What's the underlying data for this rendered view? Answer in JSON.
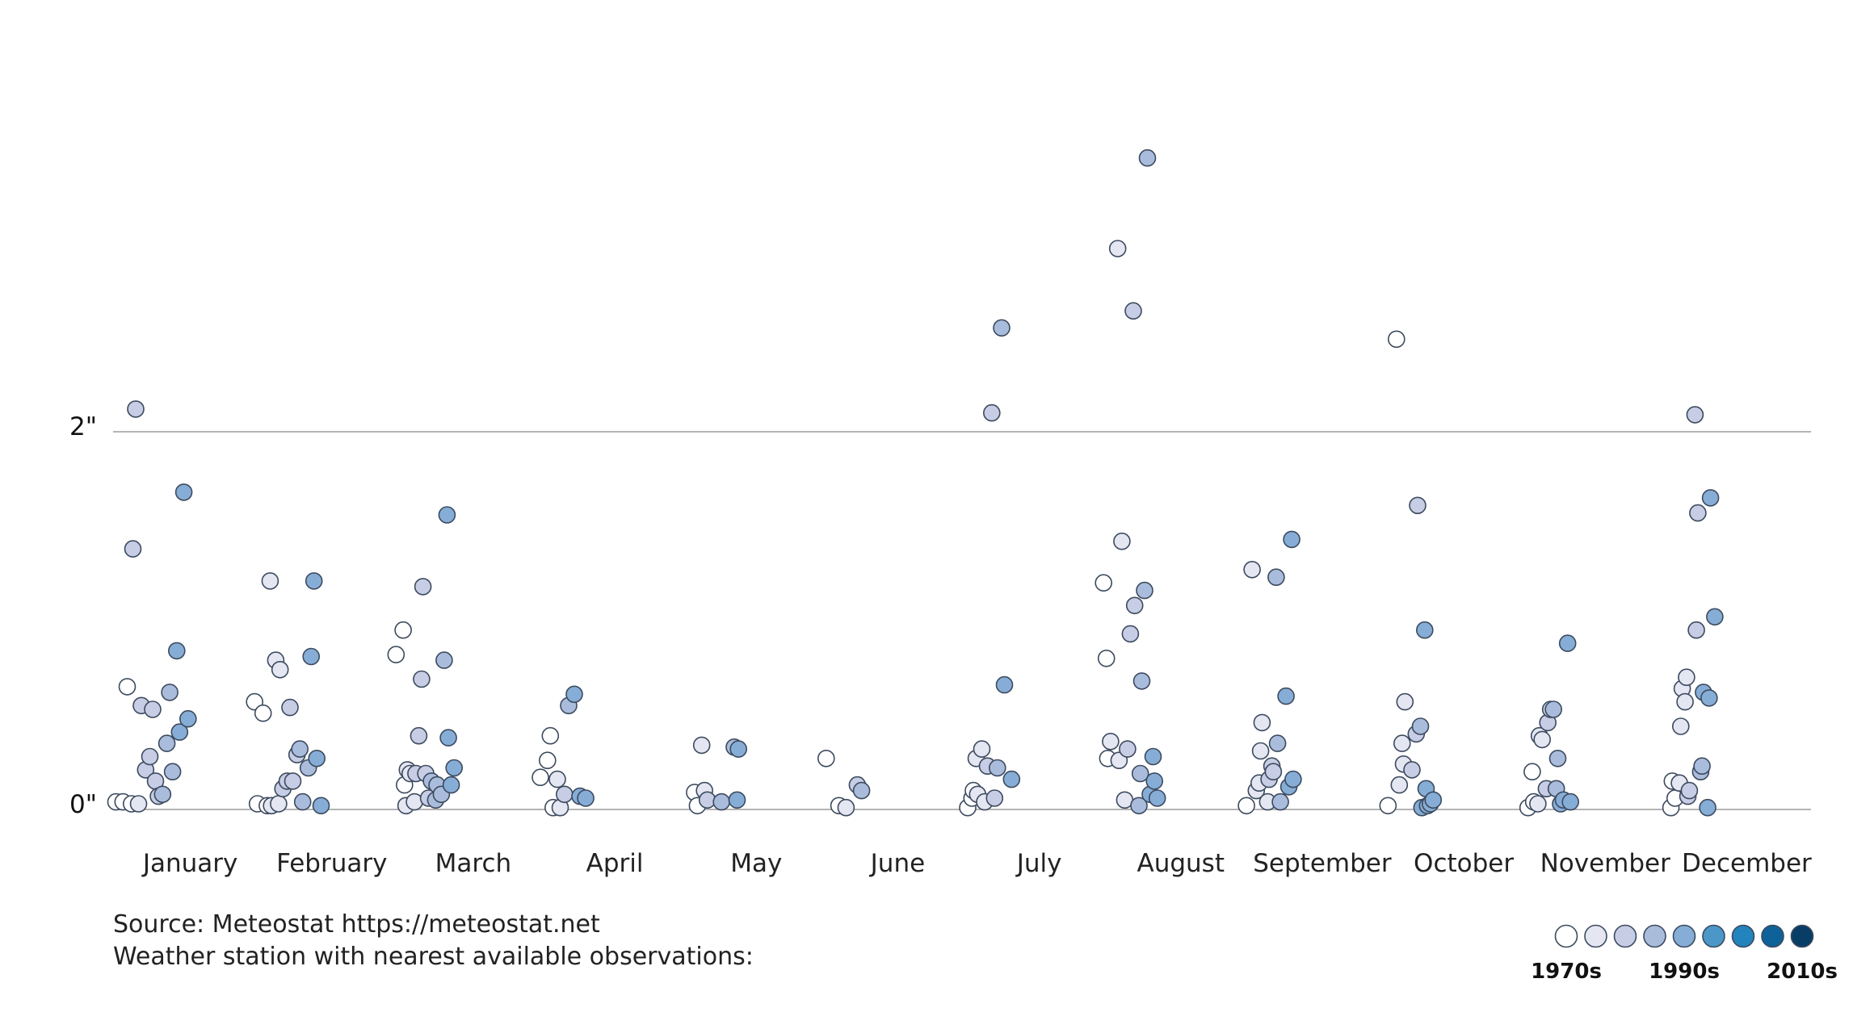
{
  "chart_data": {
    "type": "scatter",
    "title": "",
    "xlabel": "",
    "ylabel": "",
    "ylim": [
      0,
      3.3
    ],
    "y_ticks": [
      {
        "value": 0,
        "label": "0\""
      },
      {
        "value": 2,
        "label": "2\""
      }
    ],
    "categories": [
      "January",
      "February",
      "March",
      "April",
      "May",
      "June",
      "July",
      "August",
      "September",
      "October",
      "November",
      "December"
    ],
    "legend": {
      "position": "bottom-right",
      "shades": [
        "#ffffff",
        "#e4e6f2",
        "#c7cde4",
        "#a9bcdc",
        "#86add6",
        "#4b98c8",
        "#2383bd",
        "#0e629a",
        "#083d66"
      ],
      "labels": [
        "1970s",
        "1990s",
        "2010s"
      ]
    },
    "series": [
      {
        "name": "January",
        "points": [
          [
            -0.48,
            0.04,
            0
          ],
          [
            -0.43,
            0.04,
            0
          ],
          [
            -0.4,
            0.65,
            0
          ],
          [
            -0.37,
            0.03,
            0
          ],
          [
            -0.32,
            0.03,
            1
          ],
          [
            -0.36,
            1.38,
            2
          ],
          [
            -0.34,
            2.12,
            2
          ],
          [
            -0.3,
            0.55,
            2
          ],
          [
            -0.27,
            0.21,
            2
          ],
          [
            -0.24,
            0.28,
            2
          ],
          [
            -0.22,
            0.53,
            2
          ],
          [
            -0.2,
            0.15,
            2
          ],
          [
            -0.18,
            0.07,
            2
          ],
          [
            -0.15,
            0.08,
            3
          ],
          [
            -0.12,
            0.35,
            3
          ],
          [
            -0.1,
            0.62,
            3
          ],
          [
            -0.08,
            0.2,
            3
          ],
          [
            -0.05,
            0.84,
            4
          ],
          [
            -0.03,
            0.41,
            4
          ],
          [
            0.0,
            1.68,
            4
          ],
          [
            0.03,
            0.48,
            4
          ]
        ]
      },
      {
        "name": "February",
        "points": [
          [
            -0.5,
            0.57,
            0
          ],
          [
            -0.48,
            0.03,
            0
          ],
          [
            -0.44,
            0.51,
            0
          ],
          [
            -0.41,
            0.02,
            0
          ],
          [
            -0.38,
            0.02,
            1
          ],
          [
            -0.39,
            1.21,
            1
          ],
          [
            -0.35,
            0.79,
            1
          ],
          [
            -0.32,
            0.74,
            1
          ],
          [
            -0.33,
            0.03,
            1
          ],
          [
            -0.3,
            0.11,
            2
          ],
          [
            -0.27,
            0.15,
            2
          ],
          [
            -0.25,
            0.54,
            2
          ],
          [
            -0.23,
            0.15,
            2
          ],
          [
            -0.2,
            0.29,
            2
          ],
          [
            -0.18,
            0.32,
            3
          ],
          [
            -0.16,
            0.04,
            3
          ],
          [
            -0.12,
            0.22,
            3
          ],
          [
            -0.1,
            0.81,
            4
          ],
          [
            -0.08,
            1.21,
            4
          ],
          [
            -0.06,
            0.27,
            4
          ],
          [
            -0.03,
            0.02,
            4
          ]
        ]
      },
      {
        "name": "March",
        "points": [
          [
            -0.5,
            0.82,
            0
          ],
          [
            -0.45,
            0.95,
            0
          ],
          [
            -0.44,
            0.13,
            0
          ],
          [
            -0.43,
            0.02,
            1
          ],
          [
            -0.42,
            0.21,
            1
          ],
          [
            -0.4,
            0.19,
            1
          ],
          [
            -0.37,
            0.04,
            1
          ],
          [
            -0.36,
            0.19,
            2
          ],
          [
            -0.34,
            0.39,
            2
          ],
          [
            -0.32,
            0.69,
            2
          ],
          [
            -0.31,
            1.18,
            2
          ],
          [
            -0.29,
            0.19,
            2
          ],
          [
            -0.27,
            0.06,
            2
          ],
          [
            -0.25,
            0.15,
            3
          ],
          [
            -0.22,
            0.05,
            3
          ],
          [
            -0.21,
            0.13,
            3
          ],
          [
            -0.18,
            0.08,
            3
          ],
          [
            -0.16,
            0.79,
            3
          ],
          [
            -0.14,
            1.56,
            4
          ],
          [
            -0.13,
            0.38,
            4
          ],
          [
            -0.11,
            0.13,
            4
          ],
          [
            -0.09,
            0.22,
            4
          ]
        ]
      },
      {
        "name": "April",
        "points": [
          [
            -0.48,
            0.17,
            0
          ],
          [
            -0.41,
            0.39,
            0
          ],
          [
            -0.43,
            0.26,
            0
          ],
          [
            -0.39,
            0.01,
            0
          ],
          [
            -0.36,
            0.16,
            1
          ],
          [
            -0.34,
            0.01,
            1
          ],
          [
            -0.31,
            0.08,
            2
          ],
          [
            -0.28,
            0.55,
            3
          ],
          [
            -0.24,
            0.61,
            4
          ],
          [
            -0.2,
            0.07,
            4
          ],
          [
            -0.16,
            0.06,
            4
          ]
        ]
      },
      {
        "name": "May",
        "points": [
          [
            -0.39,
            0.09,
            0
          ],
          [
            -0.37,
            0.02,
            0
          ],
          [
            -0.34,
            0.34,
            1
          ],
          [
            -0.32,
            0.1,
            1
          ],
          [
            -0.3,
            0.05,
            2
          ],
          [
            -0.2,
            0.04,
            3
          ],
          [
            -0.11,
            0.33,
            3
          ],
          [
            -0.08,
            0.32,
            4
          ],
          [
            -0.09,
            0.05,
            4
          ]
        ]
      },
      {
        "name": "June",
        "points": [
          [
            -0.46,
            0.27,
            0
          ],
          [
            -0.37,
            0.02,
            0
          ],
          [
            -0.32,
            0.01,
            1
          ],
          [
            -0.24,
            0.13,
            2
          ],
          [
            -0.21,
            0.1,
            3
          ]
        ]
      },
      {
        "name": "July",
        "points": [
          [
            -0.46,
            0.01,
            0
          ],
          [
            -0.43,
            0.06,
            0
          ],
          [
            -0.42,
            0.1,
            0
          ],
          [
            -0.4,
            0.27,
            1
          ],
          [
            -0.39,
            0.08,
            1
          ],
          [
            -0.36,
            0.32,
            1
          ],
          [
            -0.34,
            0.04,
            1
          ],
          [
            -0.32,
            0.23,
            2
          ],
          [
            -0.29,
            2.1,
            2
          ],
          [
            -0.27,
            0.06,
            2
          ],
          [
            -0.25,
            0.22,
            3
          ],
          [
            -0.22,
            2.55,
            3
          ],
          [
            -0.2,
            0.66,
            4
          ],
          [
            -0.15,
            0.16,
            4
          ]
        ]
      },
      {
        "name": "August",
        "points": [
          [
            -0.5,
            1.2,
            0
          ],
          [
            -0.48,
            0.8,
            0
          ],
          [
            -0.47,
            0.27,
            0
          ],
          [
            -0.45,
            0.36,
            1
          ],
          [
            -0.4,
            2.97,
            1
          ],
          [
            -0.39,
            0.26,
            1
          ],
          [
            -0.37,
            1.42,
            1
          ],
          [
            -0.35,
            0.05,
            1
          ],
          [
            -0.33,
            0.32,
            2
          ],
          [
            -0.31,
            0.93,
            2
          ],
          [
            -0.29,
            2.64,
            2
          ],
          [
            -0.28,
            1.08,
            2
          ],
          [
            -0.25,
            0.02,
            3
          ],
          [
            -0.24,
            0.19,
            3
          ],
          [
            -0.23,
            0.68,
            3
          ],
          [
            -0.21,
            1.16,
            3
          ],
          [
            -0.19,
            3.45,
            3
          ],
          [
            -0.17,
            0.08,
            4
          ],
          [
            -0.15,
            0.28,
            4
          ],
          [
            -0.14,
            0.15,
            4
          ],
          [
            -0.12,
            0.06,
            4
          ]
        ]
      },
      {
        "name": "September",
        "points": [
          [
            -0.49,
            0.02,
            0
          ],
          [
            -0.45,
            1.27,
            1
          ],
          [
            -0.42,
            0.1,
            1
          ],
          [
            -0.4,
            0.14,
            1
          ],
          [
            -0.39,
            0.31,
            1
          ],
          [
            -0.38,
            0.46,
            1
          ],
          [
            -0.34,
            0.04,
            1
          ],
          [
            -0.33,
            0.16,
            2
          ],
          [
            -0.31,
            0.23,
            2
          ],
          [
            -0.3,
            0.2,
            2
          ],
          [
            -0.28,
            1.23,
            3
          ],
          [
            -0.27,
            0.35,
            3
          ],
          [
            -0.25,
            0.04,
            3
          ],
          [
            -0.21,
            0.6,
            4
          ],
          [
            -0.19,
            0.12,
            4
          ],
          [
            -0.17,
            1.43,
            4
          ],
          [
            -0.16,
            0.16,
            4
          ]
        ]
      },
      {
        "name": "October",
        "points": [
          [
            -0.49,
            0.02,
            0
          ],
          [
            -0.43,
            2.49,
            0
          ],
          [
            -0.41,
            0.13,
            1
          ],
          [
            -0.39,
            0.35,
            1
          ],
          [
            -0.38,
            0.24,
            1
          ],
          [
            -0.37,
            0.57,
            1
          ],
          [
            -0.32,
            0.21,
            2
          ],
          [
            -0.29,
            0.4,
            2
          ],
          [
            -0.28,
            1.61,
            2
          ],
          [
            -0.26,
            0.44,
            3
          ],
          [
            -0.25,
            0.01,
            4
          ],
          [
            -0.23,
            0.95,
            4
          ],
          [
            -0.22,
            0.11,
            4
          ],
          [
            -0.21,
            0.02,
            4
          ],
          [
            -0.19,
            0.03,
            4
          ],
          [
            -0.17,
            0.05,
            4
          ]
        ]
      },
      {
        "name": "November",
        "points": [
          [
            -0.5,
            0.01,
            0
          ],
          [
            -0.47,
            0.2,
            0
          ],
          [
            -0.46,
            0.04,
            0
          ],
          [
            -0.43,
            0.03,
            1
          ],
          [
            -0.42,
            0.39,
            1
          ],
          [
            -0.4,
            0.37,
            1
          ],
          [
            -0.37,
            0.11,
            2
          ],
          [
            -0.36,
            0.46,
            2
          ],
          [
            -0.34,
            0.53,
            2
          ],
          [
            -0.32,
            0.53,
            3
          ],
          [
            -0.3,
            0.11,
            3
          ],
          [
            -0.29,
            0.27,
            3
          ],
          [
            -0.27,
            0.03,
            4
          ],
          [
            -0.25,
            0.05,
            4
          ],
          [
            -0.22,
            0.88,
            4
          ],
          [
            -0.2,
            0.04,
            4
          ]
        ]
      },
      {
        "name": "December",
        "points": [
          [
            -0.49,
            0.01,
            0
          ],
          [
            -0.48,
            0.15,
            0
          ],
          [
            -0.46,
            0.06,
            0
          ],
          [
            -0.43,
            0.14,
            1
          ],
          [
            -0.42,
            0.44,
            1
          ],
          [
            -0.41,
            0.64,
            1
          ],
          [
            -0.39,
            0.57,
            1
          ],
          [
            -0.38,
            0.7,
            1
          ],
          [
            -0.37,
            0.07,
            2
          ],
          [
            -0.36,
            0.1,
            2
          ],
          [
            -0.32,
            2.09,
            2
          ],
          [
            -0.31,
            0.95,
            2
          ],
          [
            -0.3,
            1.57,
            2
          ],
          [
            -0.28,
            0.2,
            3
          ],
          [
            -0.27,
            0.23,
            3
          ],
          [
            -0.26,
            0.62,
            4
          ],
          [
            -0.23,
            0.01,
            4
          ],
          [
            -0.22,
            0.59,
            4
          ],
          [
            -0.21,
            1.65,
            4
          ],
          [
            -0.18,
            1.02,
            4
          ]
        ]
      }
    ]
  },
  "footer": {
    "source_line": "Source: Meteostat https://meteostat.net",
    "station_line": "Weather station with nearest available observations:"
  }
}
